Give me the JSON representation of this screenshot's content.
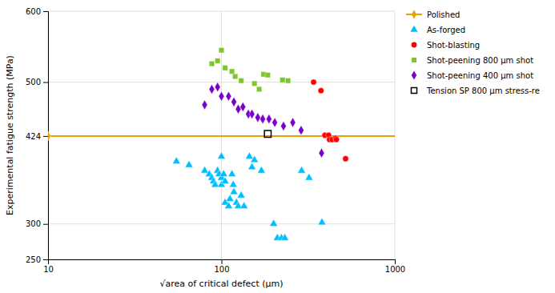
{
  "chart_data": {
    "type": "scatter",
    "xlabel": "√area of critical defect (μm)",
    "ylabel": "Experimental fatigue strength (MPa)",
    "log": "x",
    "grid": true,
    "legend": "right",
    "xlim": [
      10,
      1000
    ],
    "ylim": [
      250,
      600
    ],
    "xticks": [
      10,
      100,
      1000
    ],
    "yticks": [
      250,
      300,
      424,
      500,
      600
    ],
    "series": [
      {
        "name": "Polished",
        "type": "hline",
        "color": "#E8A000",
        "marker": "diamond",
        "x": [
          10
        ],
        "values": [
          424
        ]
      },
      {
        "name": "As-forged",
        "color": "#00BFFF",
        "marker": "triangle",
        "x": [
          55,
          65,
          80,
          85,
          88,
          90,
          92,
          95,
          97,
          100,
          100,
          100,
          103,
          105,
          105,
          110,
          112,
          115,
          117,
          118,
          122,
          125,
          130,
          135,
          145,
          150,
          155,
          170,
          200,
          210,
          222,
          232,
          290,
          320,
          380
        ],
        "values": [
          388,
          383,
          375,
          370,
          365,
          360,
          355,
          375,
          370,
          365,
          355,
          395,
          370,
          360,
          330,
          325,
          335,
          370,
          355,
          345,
          330,
          325,
          340,
          325,
          395,
          380,
          390,
          375,
          300,
          280,
          280,
          280,
          375,
          365,
          302
        ]
      },
      {
        "name": "Shot-blasting",
        "color": "#FF0000",
        "marker": "circle",
        "x": [
          340,
          375,
          395,
          415,
          420,
          435,
          455,
          460,
          520
        ],
        "values": [
          500,
          488,
          425,
          425,
          419,
          419,
          421,
          419,
          392
        ]
      },
      {
        "name": "Shot-peening 800 μm shot",
        "color": "#7DC62B",
        "marker": "square",
        "x": [
          88,
          95,
          100,
          105,
          115,
          120,
          130,
          155,
          165,
          175,
          185,
          225,
          242
        ],
        "values": [
          526,
          530,
          545,
          520,
          515,
          508,
          502,
          498,
          490,
          511,
          510,
          503,
          502
        ]
      },
      {
        "name": "Shot-peening 400 μm shot",
        "color": "#7B00CC",
        "marker": "diamond",
        "x": [
          80,
          88,
          95,
          100,
          110,
          118,
          125,
          133,
          143,
          150,
          162,
          173,
          188,
          203,
          228,
          258,
          288,
          378
        ],
        "values": [
          468,
          490,
          493,
          480,
          480,
          472,
          462,
          465,
          455,
          455,
          450,
          448,
          448,
          443,
          438,
          443,
          432,
          400
        ]
      },
      {
        "name": "Tension SP 800 μm stress-re",
        "color": "#000000",
        "marker": "open-square",
        "x": [
          185
        ],
        "values": [
          427
        ]
      }
    ]
  }
}
